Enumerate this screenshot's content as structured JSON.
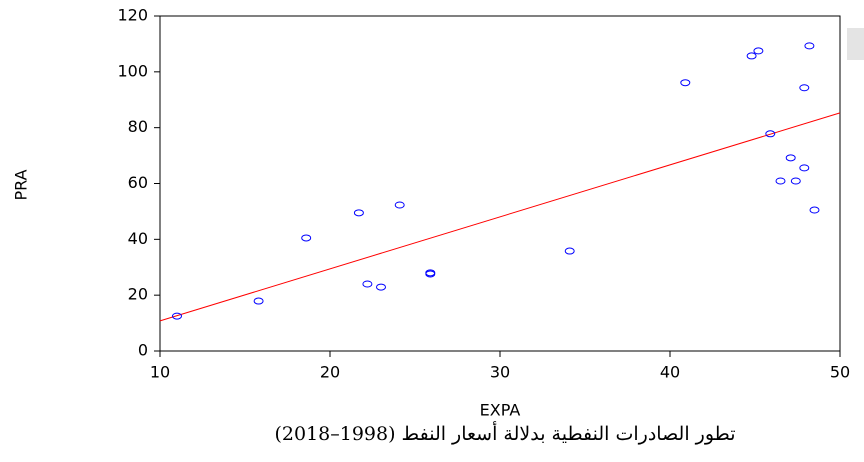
{
  "chart_data": {
    "type": "scatter",
    "x_label": "EXPA",
    "y_label": "PRA",
    "caption": "تطور الصادرات النفطية بدلالة أسعار النفط (1998–2018)",
    "series": [
      {
        "color": "#0000ff",
        "x": [
          11.0,
          15.8,
          18.6,
          21.7,
          24.1,
          22.2,
          23.0,
          25.9,
          25.9,
          34.1,
          40.9,
          44.8,
          45.2,
          48.2,
          47.9,
          45.9,
          47.1,
          47.9,
          46.5,
          47.4,
          48.5
        ],
        "values": [
          12.5,
          17.9,
          40.5,
          49.5,
          52.3,
          24.0,
          22.9,
          28.0,
          27.6,
          35.8,
          96.1,
          105.7,
          107.5,
          109.3,
          94.3,
          77.8,
          69.2,
          65.6,
          60.9,
          60.9,
          50.5
        ]
      }
    ],
    "fit_line": {
      "color": "#ff0000",
      "x": [
        10,
        50
      ],
      "values": [
        10.8,
        85.3
      ]
    },
    "xlim": [
      10,
      50
    ],
    "xticks": [
      10,
      20,
      30,
      40,
      50
    ],
    "ylim": [
      0,
      120
    ],
    "yticks": [
      0,
      20,
      40,
      60,
      80,
      100,
      120
    ]
  }
}
